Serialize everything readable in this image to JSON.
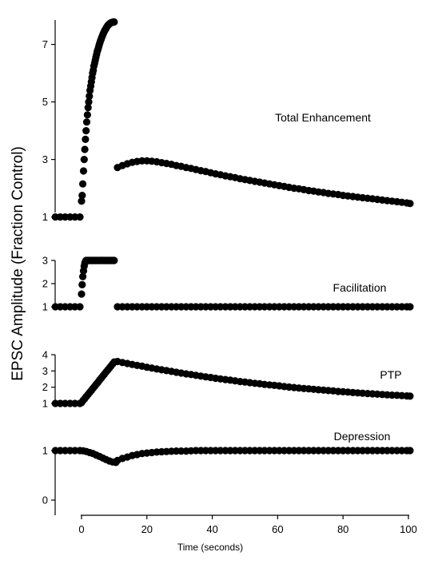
{
  "chart_data": {
    "type": "scatter",
    "ylabel": "EPSC Amplitude (Fraction Control)",
    "xlabel": "Time (seconds)",
    "xlim": [
      -8,
      101
    ],
    "x_ticks": [
      "0",
      "20",
      "40",
      "60",
      "80",
      "100"
    ],
    "marker_color": "#000000",
    "panels": [
      {
        "label": "Total Enhancement",
        "ylim": [
          0.6,
          7.85
        ],
        "y_ticks": [
          "1",
          "3",
          "5",
          "7"
        ],
        "series": [
          {
            "x": [
              -8,
              -6.5,
              -5,
              -3.5,
              -2,
              -0.5
            ],
            "y": [
              1,
              1,
              1,
              1,
              1,
              1
            ]
          },
          {
            "x": [
              0,
              0.2,
              0.4,
              0.6,
              0.8,
              1.0,
              1.2,
              1.4,
              1.6,
              1.8,
              2.0,
              2.2,
              2.4,
              2.6,
              2.8,
              3.0,
              3.2,
              3.4,
              3.6,
              3.8,
              4.0,
              4.2,
              4.4,
              4.6,
              4.8,
              5.0,
              5.2,
              5.4,
              5.6,
              5.8,
              6.0,
              6.2,
              6.4,
              6.6,
              6.8,
              7.0,
              7.2,
              7.4,
              7.6,
              7.8,
              8.0,
              8.2,
              8.4,
              8.6,
              8.8,
              9.0,
              9.2,
              9.4,
              9.6,
              9.8,
              10.0
            ],
            "y": [
              1.55,
              1.75,
              2.15,
              2.6,
              3.0,
              3.35,
              3.7,
              4.0,
              4.3,
              4.55,
              4.8,
              5.0,
              5.2,
              5.4,
              5.55,
              5.7,
              5.85,
              6.0,
              6.1,
              6.25,
              6.35,
              6.45,
              6.55,
              6.65,
              6.75,
              6.82,
              6.9,
              6.98,
              7.05,
              7.12,
              7.18,
              7.25,
              7.3,
              7.36,
              7.41,
              7.46,
              7.5,
              7.54,
              7.58,
              7.62,
              7.65,
              7.68,
              7.7,
              7.72,
              7.74,
              7.75,
              7.76,
              7.77,
              7.77,
              7.78,
              7.78
            ]
          },
          {
            "x": [
              11,
              12.5,
              14,
              15.5,
              17,
              18.5,
              20,
              21.5,
              23,
              24.5,
              26,
              27.5,
              29,
              30.5,
              32,
              33.5,
              35,
              36.5,
              38,
              39.5,
              41,
              42.5,
              44,
              45.5,
              47,
              48.5,
              50,
              51.5,
              53,
              54.5,
              56,
              57.5,
              59,
              60.5,
              62,
              63.5,
              65,
              66.5,
              68,
              69.5,
              71,
              72.5,
              74,
              75.5,
              77,
              78.5,
              80,
              81.5,
              83,
              84.5,
              86,
              87.5,
              89,
              90.5,
              92,
              93.5,
              95,
              96.5,
              98,
              99.5,
              100.5
            ],
            "y": [
              2.72,
              2.79,
              2.85,
              2.9,
              2.93,
              2.95,
              2.95,
              2.94,
              2.92,
              2.89,
              2.86,
              2.83,
              2.79,
              2.76,
              2.72,
              2.69,
              2.65,
              2.61,
              2.58,
              2.54,
              2.5,
              2.47,
              2.43,
              2.4,
              2.37,
              2.33,
              2.3,
              2.27,
              2.24,
              2.21,
              2.18,
              2.15,
              2.12,
              2.09,
              2.06,
              2.03,
              2.0,
              1.98,
              1.95,
              1.92,
              1.9,
              1.87,
              1.85,
              1.82,
              1.8,
              1.78,
              1.75,
              1.73,
              1.71,
              1.69,
              1.67,
              1.65,
              1.63,
              1.61,
              1.59,
              1.57,
              1.55,
              1.53,
              1.51,
              1.49,
              1.47
            ]
          }
        ]
      },
      {
        "label": "Facilitation",
        "ylim": [
          1,
          3
        ],
        "y_ticks": [
          "1",
          "2",
          "3"
        ],
        "series": [
          {
            "x": [
              -8,
              -6.5,
              -5,
              -3.5,
              -2,
              -0.5
            ],
            "y": [
              1,
              1,
              1,
              1,
              1,
              1
            ]
          },
          {
            "x": [
              0,
              0.2,
              0.4,
              0.6,
              0.8,
              1.0,
              1.2,
              1.4,
              1.6,
              1.8,
              2.0,
              2.2,
              2.4,
              2.6,
              2.8,
              3.0,
              3.2,
              3.4,
              3.6,
              3.8,
              4.0,
              4.2,
              4.4,
              4.6,
              4.8,
              5.0,
              5.2,
              5.4,
              5.6,
              5.8,
              6.0,
              6.2,
              6.4,
              6.6,
              6.8,
              7.0,
              7.2,
              7.4,
              7.6,
              7.8,
              8.0,
              8.2,
              8.4,
              8.6,
              8.8,
              9.0,
              9.2,
              9.4,
              9.6,
              9.8,
              10.0
            ],
            "y": [
              1.55,
              1.95,
              2.3,
              2.55,
              2.75,
              2.88,
              2.96,
              3.0,
              3.0,
              3.0,
              3.0,
              3.0,
              3.0,
              3.0,
              3.0,
              3.0,
              3.0,
              3.0,
              3.0,
              3.0,
              3.0,
              3.0,
              3.0,
              3.0,
              3.0,
              3.0,
              3.0,
              3.0,
              3.0,
              3.0,
              3.0,
              3.0,
              3.0,
              3.0,
              3.0,
              3.0,
              3.0,
              3.0,
              3.0,
              3.0,
              3.0,
              3.0,
              3.0,
              3.0,
              3.0,
              3.0,
              3.0,
              3.0,
              3.0,
              3.0,
              3.0
            ]
          },
          {
            "x": [
              11,
              12.5,
              14,
              15.5,
              17,
              18.5,
              20,
              21.5,
              23,
              24.5,
              26,
              27.5,
              29,
              30.5,
              32,
              33.5,
              35,
              36.5,
              38,
              39.5,
              41,
              42.5,
              44,
              45.5,
              47,
              48.5,
              50,
              51.5,
              53,
              54.5,
              56,
              57.5,
              59,
              60.5,
              62,
              63.5,
              65,
              66.5,
              68,
              69.5,
              71,
              72.5,
              74,
              75.5,
              77,
              78.5,
              80,
              81.5,
              83,
              84.5,
              86,
              87.5,
              89,
              90.5,
              92,
              93.5,
              95,
              96.5,
              98,
              99.5,
              100.5
            ],
            "y": [
              1,
              1,
              1,
              1,
              1,
              1,
              1,
              1,
              1,
              1,
              1,
              1,
              1,
              1,
              1,
              1,
              1,
              1,
              1,
              1,
              1,
              1,
              1,
              1,
              1,
              1,
              1,
              1,
              1,
              1,
              1,
              1,
              1,
              1,
              1,
              1,
              1,
              1,
              1,
              1,
              1,
              1,
              1,
              1,
              1,
              1,
              1,
              1,
              1,
              1,
              1,
              1,
              1,
              1,
              1,
              1,
              1,
              1,
              1,
              1,
              1
            ]
          }
        ]
      },
      {
        "label": "PTP",
        "ylim": [
          1,
          4
        ],
        "y_ticks": [
          "1",
          "2",
          "3",
          "4"
        ],
        "series": [
          {
            "x": [
              -8,
              -6.5,
              -5,
              -3.5,
              -2,
              -0.5
            ],
            "y": [
              1,
              1,
              1,
              1,
              1,
              1
            ]
          },
          {
            "x": [
              0,
              0.5,
              1.0,
              1.5,
              2.0,
              2.5,
              3.0,
              3.5,
              4.0,
              4.5,
              5.0,
              5.5,
              6.0,
              6.5,
              7.0,
              7.5,
              8.0,
              8.5,
              9.0,
              9.5,
              10.0
            ],
            "y": [
              1.05,
              1.18,
              1.3,
              1.43,
              1.55,
              1.68,
              1.8,
              1.93,
              2.05,
              2.18,
              2.3,
              2.43,
              2.55,
              2.68,
              2.8,
              2.93,
              3.05,
              3.18,
              3.3,
              3.43,
              3.55
            ]
          },
          {
            "x": [
              11,
              12.5,
              14,
              15.5,
              17,
              18.5,
              20,
              21.5,
              23,
              24.5,
              26,
              27.5,
              29,
              30.5,
              32,
              33.5,
              35,
              36.5,
              38,
              39.5,
              41,
              42.5,
              44,
              45.5,
              47,
              48.5,
              50,
              51.5,
              53,
              54.5,
              56,
              57.5,
              59,
              60.5,
              62,
              63.5,
              65,
              66.5,
              68,
              69.5,
              71,
              72.5,
              74,
              75.5,
              77,
              78.5,
              80,
              81.5,
              83,
              84.5,
              86,
              87.5,
              89,
              90.5,
              92,
              93.5,
              95,
              96.5,
              98,
              99.5,
              100.5
            ],
            "y": [
              3.58,
              3.52,
              3.46,
              3.4,
              3.34,
              3.29,
              3.23,
              3.18,
              3.12,
              3.07,
              3.02,
              2.97,
              2.92,
              2.87,
              2.82,
              2.78,
              2.73,
              2.68,
              2.64,
              2.6,
              2.55,
              2.51,
              2.47,
              2.43,
              2.39,
              2.35,
              2.32,
              2.28,
              2.24,
              2.21,
              2.17,
              2.14,
              2.11,
              2.08,
              2.04,
              2.01,
              1.98,
              1.95,
              1.92,
              1.9,
              1.87,
              1.84,
              1.82,
              1.79,
              1.77,
              1.74,
              1.72,
              1.7,
              1.67,
              1.65,
              1.63,
              1.61,
              1.59,
              1.57,
              1.55,
              1.53,
              1.51,
              1.5,
              1.48,
              1.46,
              1.45
            ]
          }
        ]
      },
      {
        "label": "Depression",
        "ylim": [
          0,
          1
        ],
        "y_ticks": [
          "0",
          "1"
        ],
        "series": [
          {
            "x": [
              -8,
              -6.5,
              -5,
              -3.5,
              -2,
              -0.5,
              0.5,
              1.5,
              2.5,
              3.5,
              4.5,
              5.5,
              6.5,
              7.5,
              8.5,
              9.5,
              10.5
            ],
            "y": [
              1,
              1,
              1,
              1,
              1,
              1,
              0.995,
              0.98,
              0.96,
              0.94,
              0.91,
              0.88,
              0.85,
              0.82,
              0.79,
              0.77,
              0.76
            ]
          },
          {
            "x": [
              11,
              12.5,
              14,
              15.5,
              17,
              18.5,
              20,
              21.5,
              23,
              24.5,
              26,
              27.5,
              29,
              30.5,
              32,
              33.5,
              35,
              36.5,
              38,
              39.5,
              41,
              42.5,
              44,
              45.5,
              47,
              48.5,
              50,
              51.5,
              53,
              54.5,
              56,
              57.5,
              59,
              60.5,
              62,
              63.5,
              65,
              66.5,
              68,
              69.5,
              71,
              72.5,
              74,
              75.5,
              77,
              78.5,
              80,
              81.5,
              83,
              84.5,
              86,
              87.5,
              89,
              90.5,
              92,
              93.5,
              95,
              96.5,
              98,
              99.5,
              100.5
            ],
            "y": [
              0.8,
              0.84,
              0.87,
              0.9,
              0.92,
              0.94,
              0.95,
              0.96,
              0.97,
              0.975,
              0.98,
              0.985,
              0.99,
              0.99,
              0.99,
              0.995,
              1,
              1,
              1,
              1,
              1,
              1,
              1,
              1,
              1,
              1,
              1,
              1,
              1,
              1,
              1,
              1,
              1,
              1,
              1,
              1,
              1,
              1,
              1,
              1,
              1,
              1,
              1,
              1,
              1,
              1,
              1,
              1,
              1,
              1,
              1,
              1,
              1,
              1,
              1,
              1,
              1,
              1,
              1,
              1,
              1
            ]
          }
        ]
      }
    ]
  }
}
